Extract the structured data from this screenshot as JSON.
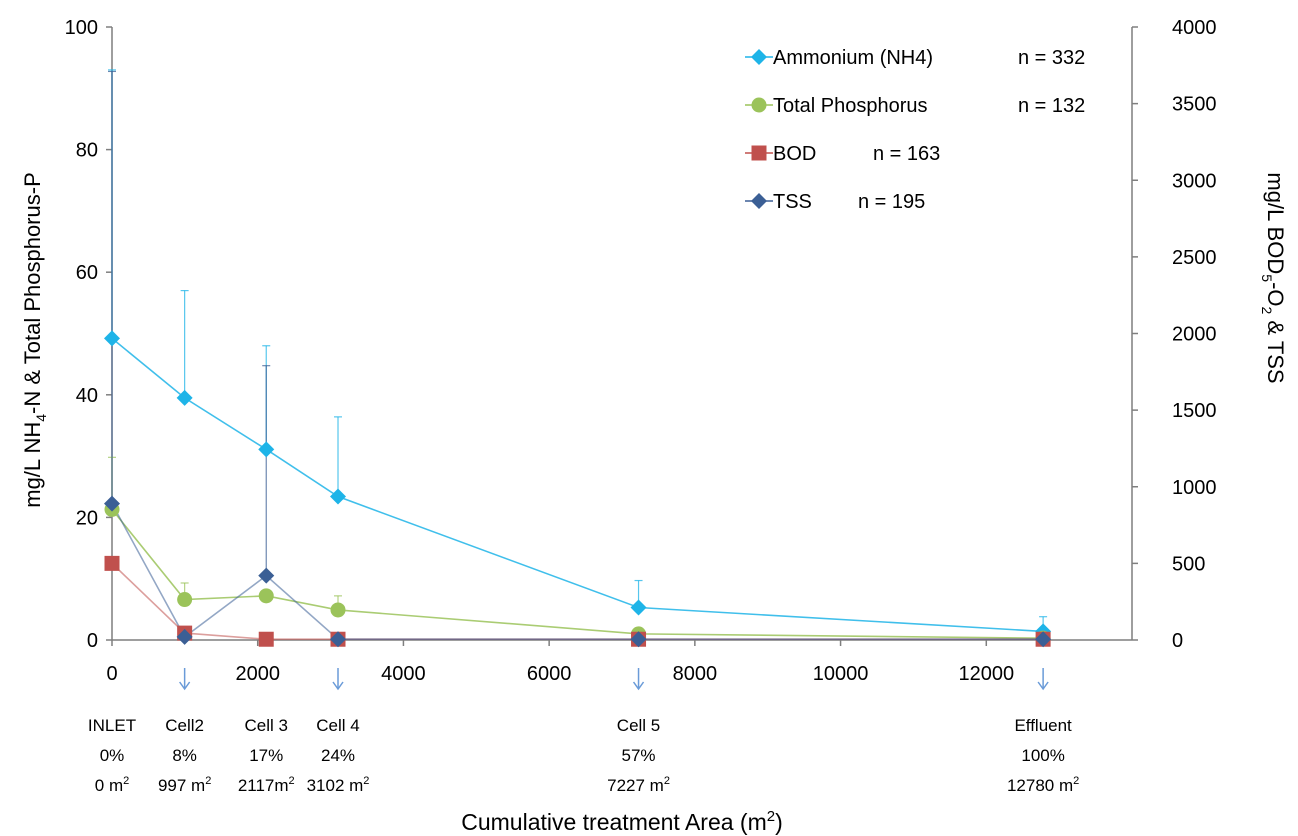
{
  "chart_data": {
    "type": "line",
    "xlabel": "Cumulative treatment Area (m",
    "xlabel_sup": "2",
    "xlabel_end": ")",
    "ylabel_left": {
      "a": "mg/L  NH",
      "sub": "4",
      "b": "-N & Total Phosphorus-P"
    },
    "ylabel_right": {
      "a": "mg/L BOD",
      "sub1": "5",
      "b": "-O",
      "sub2": "2",
      "c": " & TSS"
    },
    "xlim": [
      0,
      14000
    ],
    "xticks": [
      "0",
      "2000",
      "4000",
      "6000",
      "8000",
      "10000",
      "12000"
    ],
    "ylim_left": [
      0,
      100
    ],
    "yticks_left": [
      "0",
      "20",
      "40",
      "60",
      "80",
      "100"
    ],
    "ylim_right": [
      0,
      4000
    ],
    "yticks_right": [
      "0",
      "500",
      "1000",
      "1500",
      "2000",
      "2500",
      "3000",
      "3500",
      "4000"
    ],
    "legend_position": "top-right",
    "series": [
      {
        "name": "Ammonium (NH4)",
        "n": "n = 332",
        "axis": "left",
        "color": "#1EB4E8",
        "marker": "diamond",
        "x": [
          0,
          997,
          2117,
          3102,
          7227,
          12780
        ],
        "y": [
          49.2,
          39.5,
          31.1,
          23.4,
          5.3,
          1.4
        ],
        "err": [
          43.8,
          17.5,
          16.9,
          13.0,
          4.4,
          2.4
        ]
      },
      {
        "name": "Total Phosphorus",
        "n": "n = 132",
        "axis": "left",
        "color": "#9BC35A",
        "marker": "circle",
        "x": [
          0,
          997,
          2117,
          3102,
          7227,
          12780
        ],
        "y": [
          21.3,
          6.6,
          7.2,
          4.9,
          1.0,
          0.3
        ],
        "err": [
          8.5,
          2.7,
          0,
          2.3,
          0,
          0
        ]
      },
      {
        "name": "BOD",
        "n": "n = 163",
        "axis": "right",
        "color": "#C0504D",
        "marker": "square",
        "x": [
          0,
          997,
          2117,
          3102,
          7227,
          12780
        ],
        "y": [
          500,
          45,
          5,
          5,
          5,
          5
        ],
        "err": [
          0,
          0,
          0,
          0,
          0,
          0
        ]
      },
      {
        "name": "TSS",
        "n": "n = 195",
        "axis": "right",
        "color": "#3B5F95",
        "marker": "diamond",
        "x": [
          0,
          997,
          2117,
          3102,
          7227,
          12780
        ],
        "y": [
          890,
          20,
          420,
          5,
          5,
          5
        ],
        "err": [
          2820,
          0,
          1370,
          0,
          0,
          0
        ]
      }
    ],
    "cells": [
      {
        "x": 0,
        "name": "INLET",
        "pct": "0%",
        "area": "0 m",
        "arrow": false
      },
      {
        "x": 997,
        "name": "Cell2",
        "pct": "8%",
        "area": "997 m",
        "arrow": true
      },
      {
        "x": 2117,
        "name": "Cell 3",
        "pct": "17%",
        "area": "2117m",
        "arrow": false
      },
      {
        "x": 3102,
        "name": "Cell 4",
        "pct": "24%",
        "area": "3102 m",
        "arrow": true
      },
      {
        "x": 7227,
        "name": "Cell 5",
        "pct": "57%",
        "area": "7227 m",
        "arrow": true
      },
      {
        "x": 12780,
        "name": "Effluent",
        "pct": "100%",
        "area": "12780 m",
        "arrow": true
      }
    ],
    "area_sup": "2"
  }
}
